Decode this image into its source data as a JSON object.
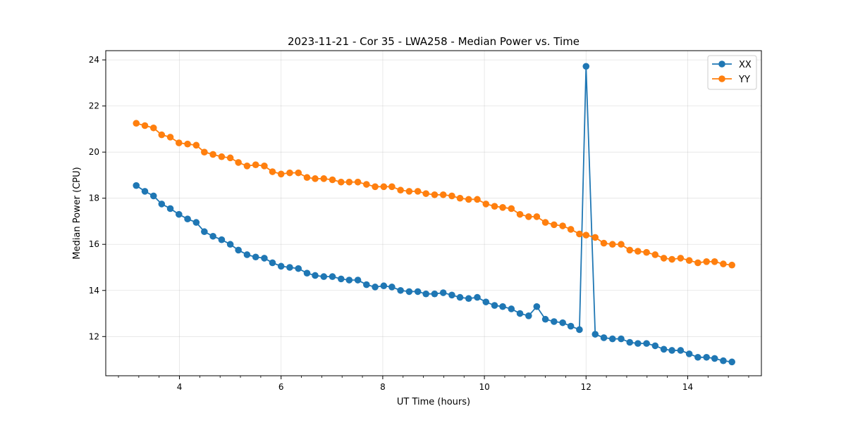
{
  "chart_data": {
    "type": "line",
    "title": "2023-11-21 - Cor 35 - LWA258 - Median Power vs. Time",
    "xlabel": "UT Time (hours)",
    "ylabel": "Median Power (CPU)",
    "xlim": [
      2.55,
      15.45
    ],
    "ylim": [
      10.3,
      24.4
    ],
    "xticks": [
      4,
      6,
      8,
      10,
      12,
      14
    ],
    "yticks": [
      12,
      14,
      16,
      18,
      20,
      22,
      24
    ],
    "x_minor_step": 0.4,
    "grid": true,
    "legend": "top-right",
    "x": [
      3.15,
      3.32,
      3.49,
      3.65,
      3.82,
      3.99,
      4.16,
      4.33,
      4.49,
      4.66,
      4.83,
      5.0,
      5.16,
      5.33,
      5.5,
      5.67,
      5.83,
      6.0,
      6.17,
      6.34,
      6.51,
      6.67,
      6.84,
      7.01,
      7.18,
      7.34,
      7.51,
      7.68,
      7.85,
      8.02,
      8.18,
      8.35,
      8.52,
      8.69,
      8.85,
      9.02,
      9.19,
      9.36,
      9.52,
      9.69,
      9.86,
      10.03,
      10.2,
      10.36,
      10.53,
      10.7,
      10.87,
      11.03,
      11.2,
      11.37,
      11.54,
      11.7,
      11.87,
      12.0,
      12.18,
      12.35,
      12.52,
      12.69,
      12.86,
      13.02,
      13.19,
      13.36,
      13.53,
      13.69,
      13.86,
      14.03,
      14.2,
      14.37,
      14.53,
      14.7,
      14.87
    ],
    "series": [
      {
        "name": "XX",
        "color": "#1f77b4",
        "values": [
          18.55,
          18.3,
          18.1,
          17.75,
          17.55,
          17.3,
          17.1,
          16.95,
          16.55,
          16.35,
          16.2,
          16.0,
          15.75,
          15.55,
          15.45,
          15.4,
          15.2,
          15.05,
          15.0,
          14.95,
          14.75,
          14.65,
          14.6,
          14.6,
          14.5,
          14.45,
          14.45,
          14.25,
          14.15,
          14.2,
          14.15,
          14.0,
          13.95,
          13.95,
          13.85,
          13.85,
          13.9,
          13.8,
          13.7,
          13.65,
          13.7,
          13.5,
          13.35,
          13.3,
          13.2,
          13.0,
          12.9,
          13.3,
          12.75,
          12.65,
          12.6,
          12.45,
          12.3,
          23.72,
          12.1,
          11.95,
          11.9,
          11.9,
          11.75,
          11.7,
          11.7,
          11.6,
          11.45,
          11.4,
          11.4,
          11.25,
          11.1,
          11.1,
          11.05,
          10.95,
          10.9
        ]
      },
      {
        "name": "YY",
        "color": "#ff7f0e",
        "values": [
          21.25,
          21.15,
          21.05,
          20.75,
          20.65,
          20.4,
          20.35,
          20.3,
          20.0,
          19.9,
          19.8,
          19.75,
          19.55,
          19.4,
          19.45,
          19.4,
          19.15,
          19.05,
          19.1,
          19.1,
          18.9,
          18.85,
          18.85,
          18.8,
          18.7,
          18.7,
          18.7,
          18.6,
          18.5,
          18.5,
          18.5,
          18.35,
          18.3,
          18.3,
          18.2,
          18.15,
          18.15,
          18.1,
          18.0,
          17.95,
          17.95,
          17.75,
          17.65,
          17.6,
          17.55,
          17.3,
          17.2,
          17.2,
          16.95,
          16.85,
          16.8,
          16.65,
          16.45,
          16.4,
          16.3,
          16.05,
          16.0,
          16.0,
          15.75,
          15.7,
          15.65,
          15.55,
          15.4,
          15.35,
          15.4,
          15.3,
          15.2,
          15.25,
          15.25,
          15.15,
          15.1
        ]
      }
    ]
  }
}
